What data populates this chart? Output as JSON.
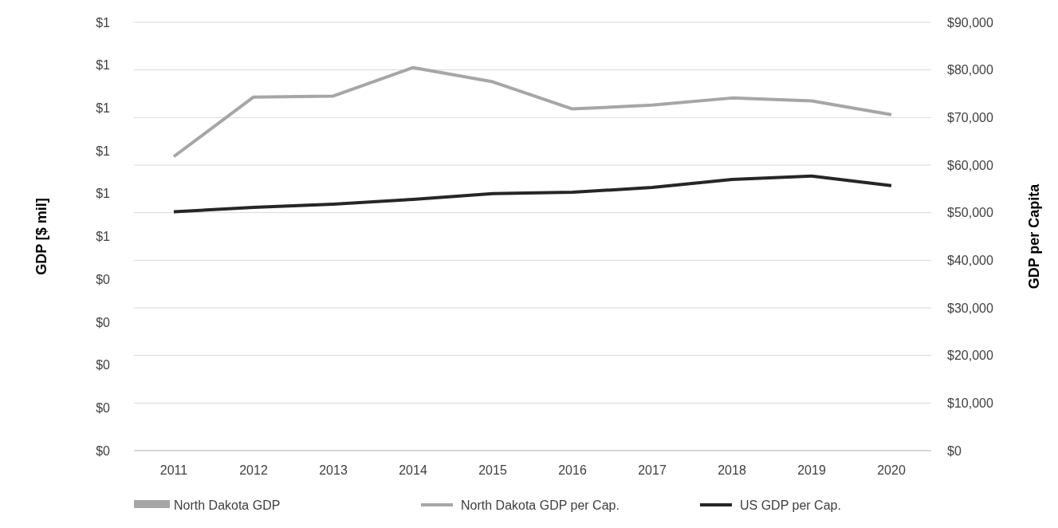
{
  "chart_data": {
    "type": "line",
    "ylabel": "GDP [$ mil]",
    "y2label": "GDP per Capita",
    "categories": [
      "2011",
      "2012",
      "2013",
      "2014",
      "2015",
      "2016",
      "2017",
      "2018",
      "2019",
      "2020"
    ],
    "ylim": [
      0,
      1
    ],
    "yticks": [
      {
        "value": 0,
        "label": "$0"
      },
      {
        "value": 0.1,
        "label": "$0"
      },
      {
        "value": 0.2,
        "label": "$0"
      },
      {
        "value": 0.3,
        "label": "$0"
      },
      {
        "value": 0.4,
        "label": "$0"
      },
      {
        "value": 0.5,
        "label": "$1"
      },
      {
        "value": 0.6,
        "label": "$1"
      },
      {
        "value": 0.7,
        "label": "$1"
      },
      {
        "value": 0.8,
        "label": "$1"
      },
      {
        "value": 0.9,
        "label": "$1"
      },
      {
        "value": 1,
        "label": "$1"
      }
    ],
    "y2lim": [
      0,
      90000
    ],
    "y2ticks": [
      {
        "value": 0,
        "label": "$0"
      },
      {
        "value": 10000,
        "label": "$10,000"
      },
      {
        "value": 20000,
        "label": "$20,000"
      },
      {
        "value": 30000,
        "label": "$30,000"
      },
      {
        "value": 40000,
        "label": "$40,000"
      },
      {
        "value": 50000,
        "label": "$50,000"
      },
      {
        "value": 60000,
        "label": "$60,000"
      },
      {
        "value": 70000,
        "label": "$70,000"
      },
      {
        "value": 80000,
        "label": "$80,000"
      },
      {
        "value": 90000,
        "label": "$90,000"
      }
    ],
    "grid": "y2",
    "legend": "bottom",
    "marker": "none",
    "line_style": "solid",
    "series": [
      {
        "name": "North Dakota GDP",
        "type": "bar",
        "color": "#a6a6a6",
        "values": [
          null,
          null,
          null,
          null,
          null,
          null,
          null,
          null,
          null,
          null
        ]
      },
      {
        "name": "North Dakota GDP per Cap.",
        "axis": "y2",
        "color": "#a6a6a6",
        "values": [
          61800,
          74300,
          74500,
          80500,
          77500,
          71800,
          72600,
          74100,
          73500,
          70600
        ]
      },
      {
        "name": "US GDP per Cap.",
        "axis": "y2",
        "color": "#262626",
        "values": [
          50200,
          51100,
          51800,
          52800,
          54000,
          54300,
          55300,
          57000,
          57700,
          55700
        ]
      }
    ]
  }
}
